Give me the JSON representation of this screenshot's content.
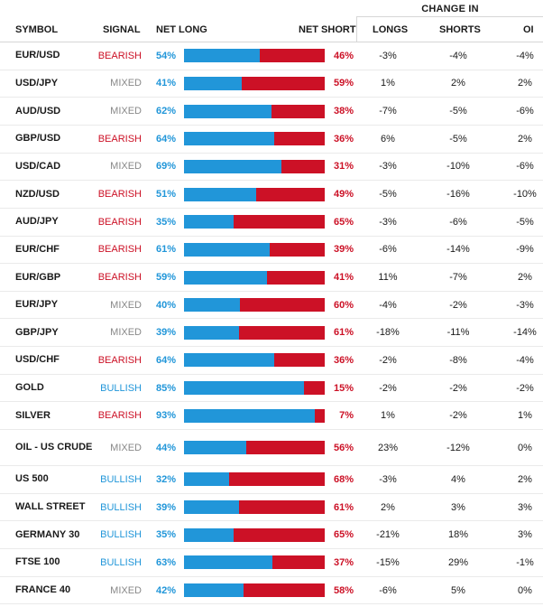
{
  "header": {
    "change_in": "CHANGE IN",
    "symbol": "SYMBOL",
    "signal": "SIGNAL",
    "net_long": "NET LONG",
    "net_short": "NET SHORT",
    "longs": "LONGS",
    "shorts": "SHORTS",
    "oi": "OI"
  },
  "rows": [
    {
      "symbol": "EUR/USD",
      "signal": "BEARISH",
      "net_long": "54%",
      "net_short": "46%",
      "long_pct": 54,
      "longs": "-3%",
      "shorts": "-4%",
      "oi": "-4%"
    },
    {
      "symbol": "USD/JPY",
      "signal": "MIXED",
      "net_long": "41%",
      "net_short": "59%",
      "long_pct": 41,
      "longs": "1%",
      "shorts": "2%",
      "oi": "2%"
    },
    {
      "symbol": "AUD/USD",
      "signal": "MIXED",
      "net_long": "62%",
      "net_short": "38%",
      "long_pct": 62,
      "longs": "-7%",
      "shorts": "-5%",
      "oi": "-6%"
    },
    {
      "symbol": "GBP/USD",
      "signal": "BEARISH",
      "net_long": "64%",
      "net_short": "36%",
      "long_pct": 64,
      "longs": "6%",
      "shorts": "-5%",
      "oi": "2%"
    },
    {
      "symbol": "USD/CAD",
      "signal": "MIXED",
      "net_long": "69%",
      "net_short": "31%",
      "long_pct": 69,
      "longs": "-3%",
      "shorts": "-10%",
      "oi": "-6%"
    },
    {
      "symbol": "NZD/USD",
      "signal": "BEARISH",
      "net_long": "51%",
      "net_short": "49%",
      "long_pct": 51,
      "longs": "-5%",
      "shorts": "-16%",
      "oi": "-10%"
    },
    {
      "symbol": "AUD/JPY",
      "signal": "BEARISH",
      "net_long": "35%",
      "net_short": "65%",
      "long_pct": 35,
      "longs": "-3%",
      "shorts": "-6%",
      "oi": "-5%"
    },
    {
      "symbol": "EUR/CHF",
      "signal": "BEARISH",
      "net_long": "61%",
      "net_short": "39%",
      "long_pct": 61,
      "longs": "-6%",
      "shorts": "-14%",
      "oi": "-9%"
    },
    {
      "symbol": "EUR/GBP",
      "signal": "BEARISH",
      "net_long": "59%",
      "net_short": "41%",
      "long_pct": 59,
      "longs": "11%",
      "shorts": "-7%",
      "oi": "2%"
    },
    {
      "symbol": "EUR/JPY",
      "signal": "MIXED",
      "net_long": "40%",
      "net_short": "60%",
      "long_pct": 40,
      "longs": "-4%",
      "shorts": "-2%",
      "oi": "-3%"
    },
    {
      "symbol": "GBP/JPY",
      "signal": "MIXED",
      "net_long": "39%",
      "net_short": "61%",
      "long_pct": 39,
      "longs": "-18%",
      "shorts": "-11%",
      "oi": "-14%"
    },
    {
      "symbol": "USD/CHF",
      "signal": "BEARISH",
      "net_long": "64%",
      "net_short": "36%",
      "long_pct": 64,
      "longs": "-2%",
      "shorts": "-8%",
      "oi": "-4%"
    },
    {
      "symbol": "GOLD",
      "signal": "BULLISH",
      "net_long": "85%",
      "net_short": "15%",
      "long_pct": 85,
      "longs": "-2%",
      "shorts": "-2%",
      "oi": "-2%"
    },
    {
      "symbol": "SILVER",
      "signal": "BEARISH",
      "net_long": "93%",
      "net_short": "7%",
      "long_pct": 93,
      "longs": "1%",
      "shorts": "-2%",
      "oi": "1%"
    },
    {
      "symbol": "OIL - US CRUDE",
      "signal": "MIXED",
      "net_long": "44%",
      "net_short": "56%",
      "long_pct": 44,
      "longs": "23%",
      "shorts": "-12%",
      "oi": "0%"
    },
    {
      "symbol": "US 500",
      "signal": "BULLISH",
      "net_long": "32%",
      "net_short": "68%",
      "long_pct": 32,
      "longs": "-3%",
      "shorts": "4%",
      "oi": "2%"
    },
    {
      "symbol": "WALL STREET",
      "signal": "BULLISH",
      "net_long": "39%",
      "net_short": "61%",
      "long_pct": 39,
      "longs": "2%",
      "shorts": "3%",
      "oi": "3%"
    },
    {
      "symbol": "GERMANY 30",
      "signal": "BULLISH",
      "net_long": "35%",
      "net_short": "65%",
      "long_pct": 35,
      "longs": "-21%",
      "shorts": "18%",
      "oi": "3%"
    },
    {
      "symbol": "FTSE 100",
      "signal": "BULLISH",
      "net_long": "63%",
      "net_short": "37%",
      "long_pct": 63,
      "longs": "-15%",
      "shorts": "29%",
      "oi": "-1%"
    },
    {
      "symbol": "FRANCE 40",
      "signal": "MIXED",
      "net_long": "42%",
      "net_short": "58%",
      "long_pct": 42,
      "longs": "-6%",
      "shorts": "5%",
      "oi": "0%"
    }
  ]
}
